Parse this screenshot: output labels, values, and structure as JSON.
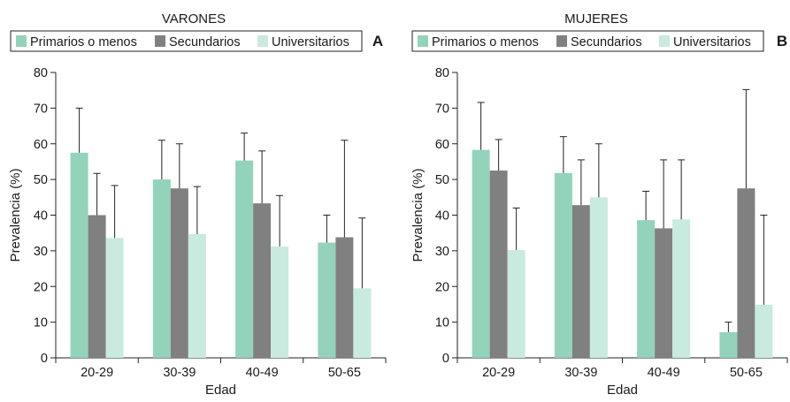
{
  "chart_data": [
    {
      "type": "bar",
      "title": "VARONES",
      "panel_label": "A",
      "xlabel": "Edad",
      "ylabel": "Prevalencia (%)",
      "ylim": [
        0,
        80
      ],
      "yticks": [
        "0",
        "10",
        "20",
        "30",
        "40",
        "50",
        "60",
        "70",
        "80"
      ],
      "categories": [
        "20-29",
        "30-39",
        "40-49",
        "50-65"
      ],
      "legend_position": "top",
      "series": [
        {
          "name": "Primarios o menos",
          "color": "#93d3bb",
          "values": [
            57.5,
            50,
            55.3,
            32.3
          ],
          "error_upper": [
            70,
            61,
            63,
            40
          ]
        },
        {
          "name": "Secundarios",
          "color": "#808080",
          "values": [
            40,
            47.5,
            43.3,
            33.8
          ],
          "error_upper": [
            51.7,
            60,
            58,
            61
          ]
        },
        {
          "name": "Universitarios",
          "color": "#c9eade",
          "values": [
            33.6,
            34.7,
            31.2,
            19.5
          ],
          "error_upper": [
            48.3,
            48,
            45.5,
            39.2
          ]
        }
      ]
    },
    {
      "type": "bar",
      "title": "MUJERES",
      "panel_label": "B",
      "xlabel": "Edad",
      "ylabel": "Prevalencia (%)",
      "ylim": [
        0,
        80
      ],
      "yticks": [
        "0",
        "10",
        "20",
        "30",
        "40",
        "50",
        "60",
        "70",
        "80"
      ],
      "categories": [
        "20-29",
        "30-39",
        "40-49",
        "50-65"
      ],
      "legend_position": "top",
      "series": [
        {
          "name": "Primarios o menos",
          "color": "#93d3bb",
          "values": [
            58.3,
            51.8,
            38.6,
            7.2
          ],
          "error_upper": [
            71.6,
            62,
            46.7,
            10
          ]
        },
        {
          "name": "Secundarios",
          "color": "#808080",
          "values": [
            52.5,
            42.8,
            36.3,
            47.5
          ],
          "error_upper": [
            61.2,
            55.5,
            55.5,
            75.2
          ]
        },
        {
          "name": "Universitarios",
          "color": "#c9eade",
          "values": [
            30.2,
            45,
            38.8,
            14.9
          ],
          "error_upper": [
            42,
            60,
            55.5,
            40
          ]
        }
      ]
    }
  ]
}
